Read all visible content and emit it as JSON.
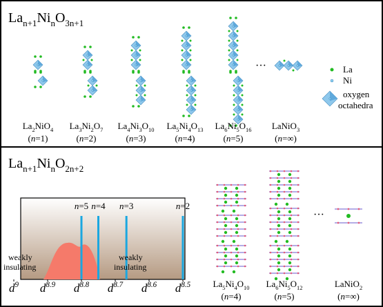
{
  "top": {
    "title": [
      "La",
      {
        "sub": "n+1"
      },
      "Ni",
      {
        "sub": "n"
      },
      "O",
      {
        "sub": "3n+1"
      }
    ],
    "structures": [
      {
        "formula": [
          "La",
          {
            "sub": "2"
          },
          "NiO",
          {
            "sub": "4"
          }
        ],
        "n": [
          "(",
          {
            "i": "n"
          },
          "=1)"
        ]
      },
      {
        "formula": [
          "La",
          {
            "sub": "3"
          },
          "Ni",
          {
            "sub": "2"
          },
          "O",
          {
            "sub": "7"
          }
        ],
        "n": [
          "(",
          {
            "i": "n"
          },
          "=2)"
        ]
      },
      {
        "formula": [
          "La",
          {
            "sub": "4"
          },
          "Ni",
          {
            "sub": "3"
          },
          "O",
          {
            "sub": "10"
          }
        ],
        "n": [
          "(",
          {
            "i": "n"
          },
          "=3)"
        ]
      },
      {
        "formula": [
          "La",
          {
            "sub": "5"
          },
          "Ni",
          {
            "sub": "4"
          },
          "O",
          {
            "sub": "13"
          }
        ],
        "n": [
          "(",
          {
            "i": "n"
          },
          "=4)"
        ]
      },
      {
        "formula": [
          "La",
          {
            "sub": "6"
          },
          "Ni",
          {
            "sub": "5"
          },
          "O",
          {
            "sub": "16"
          }
        ],
        "n": [
          "(",
          {
            "i": "n"
          },
          "=5)"
        ]
      },
      {
        "formula": [
          "LaNiO",
          {
            "sub": "3"
          }
        ],
        "n": [
          "(",
          {
            "i": "n"
          },
          "=∞)"
        ]
      }
    ],
    "ellipsis": "···",
    "legend": {
      "la": "La",
      "ni": "Ni",
      "oct": [
        "oxygen",
        "octahedra"
      ]
    }
  },
  "bottom": {
    "title": [
      "La",
      {
        "sub": "n+1"
      },
      "Ni",
      {
        "sub": "n"
      },
      "O",
      {
        "sub": "2n+2"
      }
    ],
    "plot": {
      "xlim": [
        9,
        8.5
      ],
      "xticks": [
        {
          "value": 9,
          "label": [
            "d",
            {
              "sup": "9"
            }
          ]
        },
        {
          "value": 8.9,
          "label": [
            "d",
            {
              "sup": "8.9"
            }
          ]
        },
        {
          "value": 8.8,
          "label": [
            "d",
            {
              "sup": "8.8"
            }
          ]
        },
        {
          "value": 8.7,
          "label": [
            "d",
            {
              "sup": "8.7"
            }
          ]
        },
        {
          "value": 8.6,
          "label": [
            "d",
            {
              "sup": "8.6"
            }
          ]
        },
        {
          "value": 8.5,
          "label": [
            "d",
            {
              "sup": "8.5"
            }
          ]
        }
      ],
      "lines": [
        {
          "value": 8.8,
          "label": [
            {
              "i": "n"
            },
            "=5"
          ]
        },
        {
          "value": 8.75,
          "label": [
            {
              "i": "n"
            },
            "=4"
          ]
        },
        {
          "value": 8.667,
          "label": [
            {
              "i": "n"
            },
            "=3"
          ]
        },
        {
          "value": 8.5,
          "label": [
            {
              "i": "n"
            },
            "=2"
          ]
        }
      ],
      "annotations": [
        [
          "weakly",
          "insulating"
        ],
        [
          "weakly",
          "insulating"
        ]
      ]
    },
    "structures": [
      {
        "formula": [
          "La",
          {
            "sub": "5"
          },
          "Ni",
          {
            "sub": "4"
          },
          "O",
          {
            "sub": "10"
          }
        ],
        "n": [
          "(",
          {
            "i": "n"
          },
          "=4)"
        ]
      },
      {
        "formula": [
          "La",
          {
            "sub": "6"
          },
          "Ni",
          {
            "sub": "5"
          },
          "O",
          {
            "sub": "12"
          }
        ],
        "n": [
          "(",
          {
            "i": "n"
          },
          "=5)"
        ]
      },
      {
        "formula": [
          "LaNiO",
          {
            "sub": "2"
          }
        ],
        "n": [
          "(",
          {
            "i": "n"
          },
          "=∞)"
        ]
      }
    ],
    "ellipsis": "···"
  }
}
